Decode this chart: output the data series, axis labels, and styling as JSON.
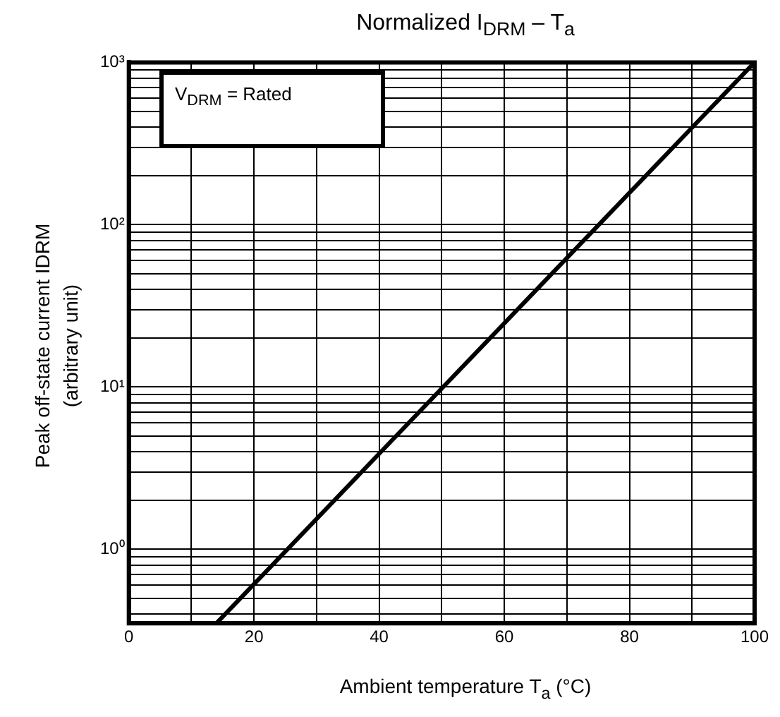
{
  "chart_data": {
    "type": "line",
    "title": "Normalized   I$_{DRM}$ – T$_{a}$",
    "xlabel": "Ambient temperature   T$_{a}$   (°C)",
    "ylabel": "Peak off-state current   IDRM\n(arbitrary unit)",
    "annotations": [
      "V$_{DRM}$ = Rated"
    ],
    "log": "y",
    "grid": true,
    "marker": "none",
    "line_style": "solid",
    "legend": false,
    "x": [
      14,
      100
    ],
    "series": [
      {
        "color": "#000000",
        "values": [
          0.35,
          1000
        ]
      }
    ],
    "xlim": [
      0,
      100
    ],
    "xticks": [
      0,
      {
        "value": 10,
        "label": null
      },
      20,
      {
        "value": 30,
        "label": null
      },
      40,
      {
        "value": 50,
        "label": null
      },
      60,
      {
        "value": 70,
        "label": null
      },
      80,
      {
        "value": 90,
        "label": null
      },
      100
    ],
    "ylim": [
      0.35,
      1000
    ],
    "yticks": [
      {
        "value": 0.4,
        "label": null
      },
      {
        "value": 0.5,
        "label": null
      },
      {
        "value": 0.6,
        "label": null
      },
      {
        "value": 0.7,
        "label": null
      },
      {
        "value": 0.8,
        "label": null
      },
      {
        "value": 0.9,
        "label": null
      },
      {
        "value": 1,
        "label": "10⁰"
      },
      {
        "value": 2,
        "label": null
      },
      {
        "value": 3,
        "label": null
      },
      {
        "value": 4,
        "label": null
      },
      {
        "value": 5,
        "label": null
      },
      {
        "value": 6,
        "label": null
      },
      {
        "value": 7,
        "label": null
      },
      {
        "value": 8,
        "label": null
      },
      {
        "value": 9,
        "label": null
      },
      {
        "value": 10,
        "label": "10¹"
      },
      {
        "value": 20,
        "label": null
      },
      {
        "value": 30,
        "label": null
      },
      {
        "value": 40,
        "label": null
      },
      {
        "value": 50,
        "label": null
      },
      {
        "value": 60,
        "label": null
      },
      {
        "value": 70,
        "label": null
      },
      {
        "value": 80,
        "label": null
      },
      {
        "value": 90,
        "label": null
      },
      {
        "value": 100,
        "label": "10²"
      },
      {
        "value": 200,
        "label": null
      },
      {
        "value": 300,
        "label": null
      },
      {
        "value": 400,
        "label": null
      },
      {
        "value": 500,
        "label": null
      },
      {
        "value": 600,
        "label": null
      },
      {
        "value": 700,
        "label": null
      },
      {
        "value": 800,
        "label": null
      },
      {
        "value": 900,
        "label": null
      },
      {
        "value": 1000,
        "label": "10³"
      }
    ]
  }
}
